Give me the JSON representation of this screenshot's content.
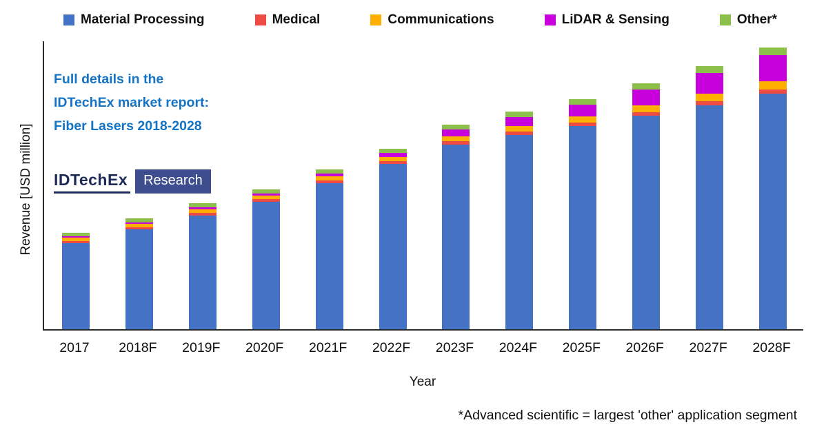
{
  "annotation": {
    "lines": [
      "Full details in the",
      "IDTechEx market report:",
      "Fiber Lasers 2018-2028"
    ],
    "color": "#1573c4"
  },
  "logo": {
    "brand": "IDTechEx",
    "suffix": "Research"
  },
  "footnote": "*Advanced scientific = largest 'other' application segment",
  "chart_data": {
    "type": "bar",
    "subtype": "stacked",
    "title": "",
    "xlabel": "Year",
    "ylabel": "Revenue [USD million]",
    "ylim": [
      0,
      1050
    ],
    "y_ticks_shown": false,
    "grid": false,
    "legend_position": "top",
    "categories": [
      "2017",
      "2018F",
      "2019F",
      "2020F",
      "2021F",
      "2022F",
      "2023F",
      "2024F",
      "2025F",
      "2026F",
      "2027F",
      "2028F"
    ],
    "series": [
      {
        "name": "Material Processing",
        "color": "#4472c4",
        "values": [
          312,
          362,
          412,
          462,
          530,
          600,
          670,
          705,
          738,
          775,
          812,
          855
        ]
      },
      {
        "name": "Medical",
        "color": "#ee4b44",
        "values": [
          8,
          8,
          10,
          10,
          10,
          10,
          12,
          12,
          12,
          12,
          15,
          15
        ]
      },
      {
        "name": "Communications",
        "color": "#ffaf00",
        "values": [
          12,
          12,
          12,
          12,
          15,
          15,
          18,
          20,
          22,
          25,
          28,
          30
        ]
      },
      {
        "name": "LiDAR & Sensing",
        "color": "#c800dc",
        "values": [
          5,
          5,
          8,
          8,
          10,
          15,
          25,
          32,
          42,
          58,
          75,
          95
        ]
      },
      {
        "name": "Other*",
        "color": "#8dc04b",
        "values": [
          12,
          15,
          15,
          15,
          15,
          15,
          18,
          20,
          22,
          22,
          25,
          28
        ]
      }
    ]
  }
}
